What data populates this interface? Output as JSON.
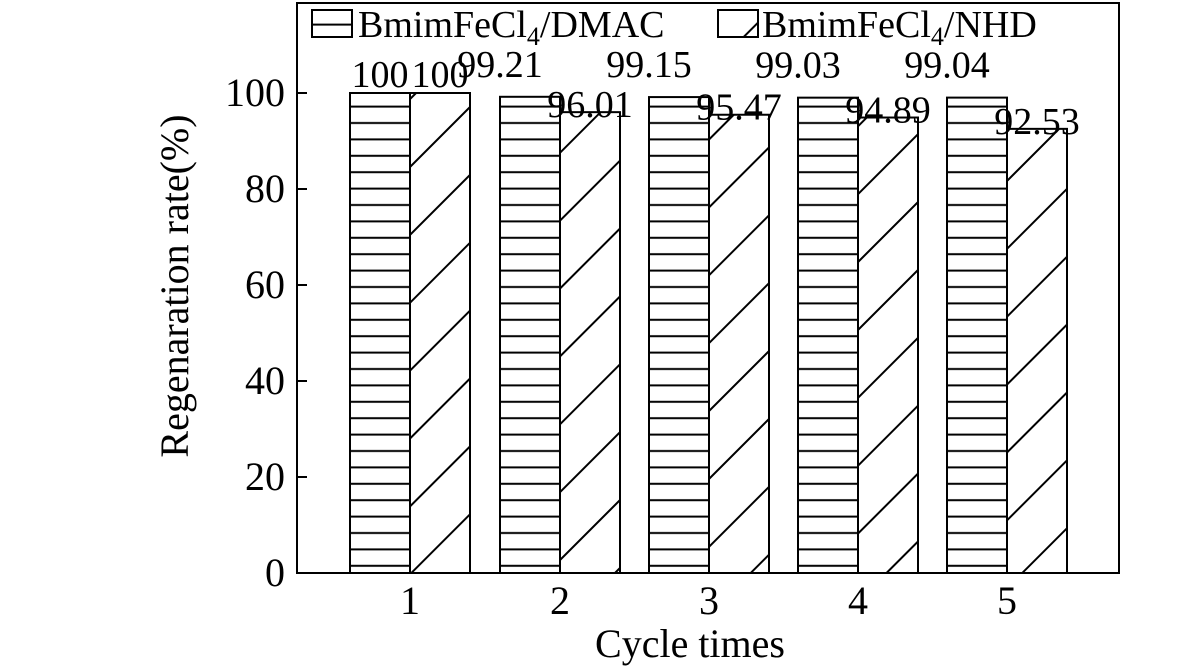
{
  "chart_data": {
    "type": "bar",
    "categories": [
      "1",
      "2",
      "3",
      "4",
      "5"
    ],
    "series": [
      {
        "name": "BmimFeCl4/DMAC",
        "name_parts": [
          "BmimFeCl",
          "4",
          "/DMAC"
        ],
        "pattern": "horizontal-lines",
        "values": [
          100,
          99.21,
          99.15,
          99.03,
          99.04
        ],
        "labels": [
          "100",
          "99.21",
          "99.15",
          "99.03",
          "99.04"
        ]
      },
      {
        "name": "BmimFeCl4/NHD",
        "name_parts": [
          "BmimFeCl",
          "4",
          "/NHD"
        ],
        "pattern": "diagonal-lines",
        "values": [
          100,
          96.01,
          95.47,
          94.89,
          92.53
        ],
        "labels": [
          "100",
          "96.01",
          "95.47",
          "94.89",
          "92.53"
        ]
      }
    ],
    "xlabel": "Cycle times",
    "ylabel": "Regenaration rate(%)",
    "ylim": [
      0,
      120
    ],
    "yticks": [
      "0",
      "20",
      "40",
      "60",
      "80",
      "100"
    ],
    "grid": false,
    "legend": "top"
  }
}
